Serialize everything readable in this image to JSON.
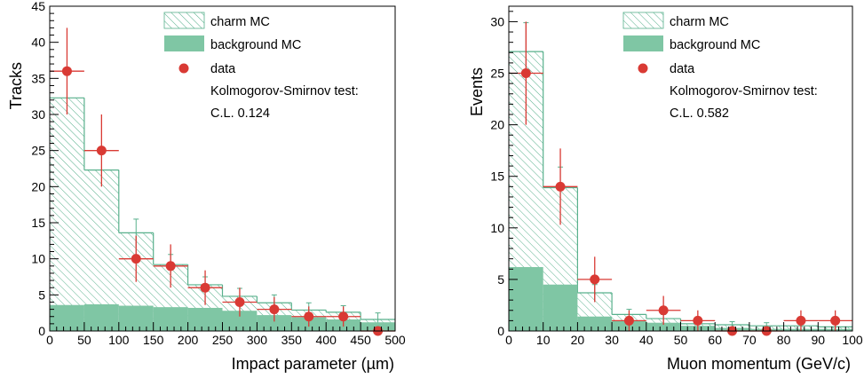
{
  "colors": {
    "charm_hatch": "#58b08c",
    "background_fill": "#7fc6a4",
    "data_marker": "#d93a34",
    "axis": "#000000"
  },
  "chart_data": [
    {
      "type": "bar",
      "xlabel": "Impact parameter (µm)",
      "ylabel": "Tracks",
      "xlim": [
        0,
        500
      ],
      "ylim": [
        0,
        45
      ],
      "bin_edges": [
        0,
        50,
        100,
        150,
        200,
        250,
        300,
        350,
        400,
        450,
        500
      ],
      "x_ticks": [
        0,
        50,
        100,
        150,
        200,
        250,
        300,
        350,
        400,
        450,
        500
      ],
      "y_ticks": [
        0,
        5,
        10,
        15,
        20,
        25,
        30,
        35,
        40,
        45
      ],
      "x_tick_labels": [
        "0",
        "50",
        "100",
        "150",
        "200",
        "250",
        "300",
        "350",
        "400",
        "450",
        "500"
      ],
      "y_tick_labels": [
        "0",
        "5",
        "10",
        "15",
        "20",
        "25",
        "30",
        "35",
        "40",
        "45"
      ],
      "grid": false,
      "legend_position": "top-right",
      "series": [
        {
          "name": "charm MC",
          "kind": "hatched-histogram",
          "values": [
            32.3,
            22.3,
            13.6,
            9.2,
            6.4,
            4.8,
            3.9,
            2.9,
            2.6,
            1.6
          ],
          "errors": [
            0,
            0,
            1.9,
            1.4,
            1.1,
            1.1,
            1.1,
            1.0,
            0.9,
            0.9
          ]
        },
        {
          "name": "background MC",
          "kind": "filled-histogram",
          "values": [
            3.6,
            3.7,
            3.5,
            3.3,
            3.2,
            2.8,
            2.2,
            1.9,
            1.6,
            1.2
          ]
        },
        {
          "name": "data",
          "kind": "points-with-errors",
          "x": [
            25,
            75,
            125,
            175,
            225,
            275,
            325,
            375,
            425,
            475
          ],
          "values": [
            36,
            25,
            10,
            9,
            6,
            4,
            3,
            2,
            2,
            0
          ],
          "y_errors": [
            6,
            5,
            3.2,
            3,
            2.4,
            2,
            1.7,
            1.4,
            1.4,
            0
          ]
        }
      ],
      "legend": {
        "charm": "charm MC",
        "background": "background MC",
        "data": "data",
        "test_label": "Kolmogorov-Smirnov test:",
        "cl_text": "C.L. 0.124"
      }
    },
    {
      "type": "bar",
      "xlabel": "Muon momentum (GeV/c)",
      "ylabel": "Events",
      "xlim": [
        0,
        100
      ],
      "ylim": [
        0,
        31.5
      ],
      "bin_edges": [
        0,
        10,
        20,
        30,
        40,
        50,
        60,
        70,
        80,
        90,
        100
      ],
      "x_ticks": [
        0,
        10,
        20,
        30,
        40,
        50,
        60,
        70,
        80,
        90,
        100
      ],
      "y_ticks": [
        0,
        5,
        10,
        15,
        20,
        25,
        30
      ],
      "x_tick_labels": [
        "0",
        "10",
        "20",
        "30",
        "40",
        "50",
        "60",
        "70",
        "80",
        "90",
        "100"
      ],
      "y_tick_labels": [
        "0",
        "5",
        "10",
        "15",
        "20",
        "25",
        "30"
      ],
      "grid": false,
      "legend_position": "top-right",
      "series": [
        {
          "name": "charm MC",
          "kind": "hatched-histogram",
          "values": [
            27.1,
            13.9,
            3.7,
            1.6,
            1.2,
            0.7,
            0.6,
            0.5,
            0.5,
            0.4
          ],
          "errors": [
            2.8,
            2.0,
            0.8,
            0.5,
            0.4,
            0.3,
            0.3,
            0.3,
            0.3,
            0.3
          ]
        },
        {
          "name": "background MC",
          "kind": "filled-histogram",
          "values": [
            6.2,
            4.5,
            1.4,
            1.0,
            0.8,
            0.5,
            0.3,
            0.2,
            0.2,
            0.2
          ]
        },
        {
          "name": "data",
          "kind": "points-with-errors",
          "x": [
            5,
            15,
            25,
            35,
            45,
            55,
            65,
            75,
            85,
            95
          ],
          "values": [
            25,
            14,
            5,
            1,
            2,
            1,
            0,
            0,
            1,
            1
          ],
          "y_errors": [
            5,
            3.7,
            2.2,
            1,
            1.4,
            1,
            0,
            0,
            1,
            1
          ]
        }
      ],
      "legend": {
        "charm": "charm MC",
        "background": "background MC",
        "data": "data",
        "test_label": "Kolmogorov-Smirnov test:",
        "cl_text": "C.L. 0.582"
      }
    }
  ]
}
